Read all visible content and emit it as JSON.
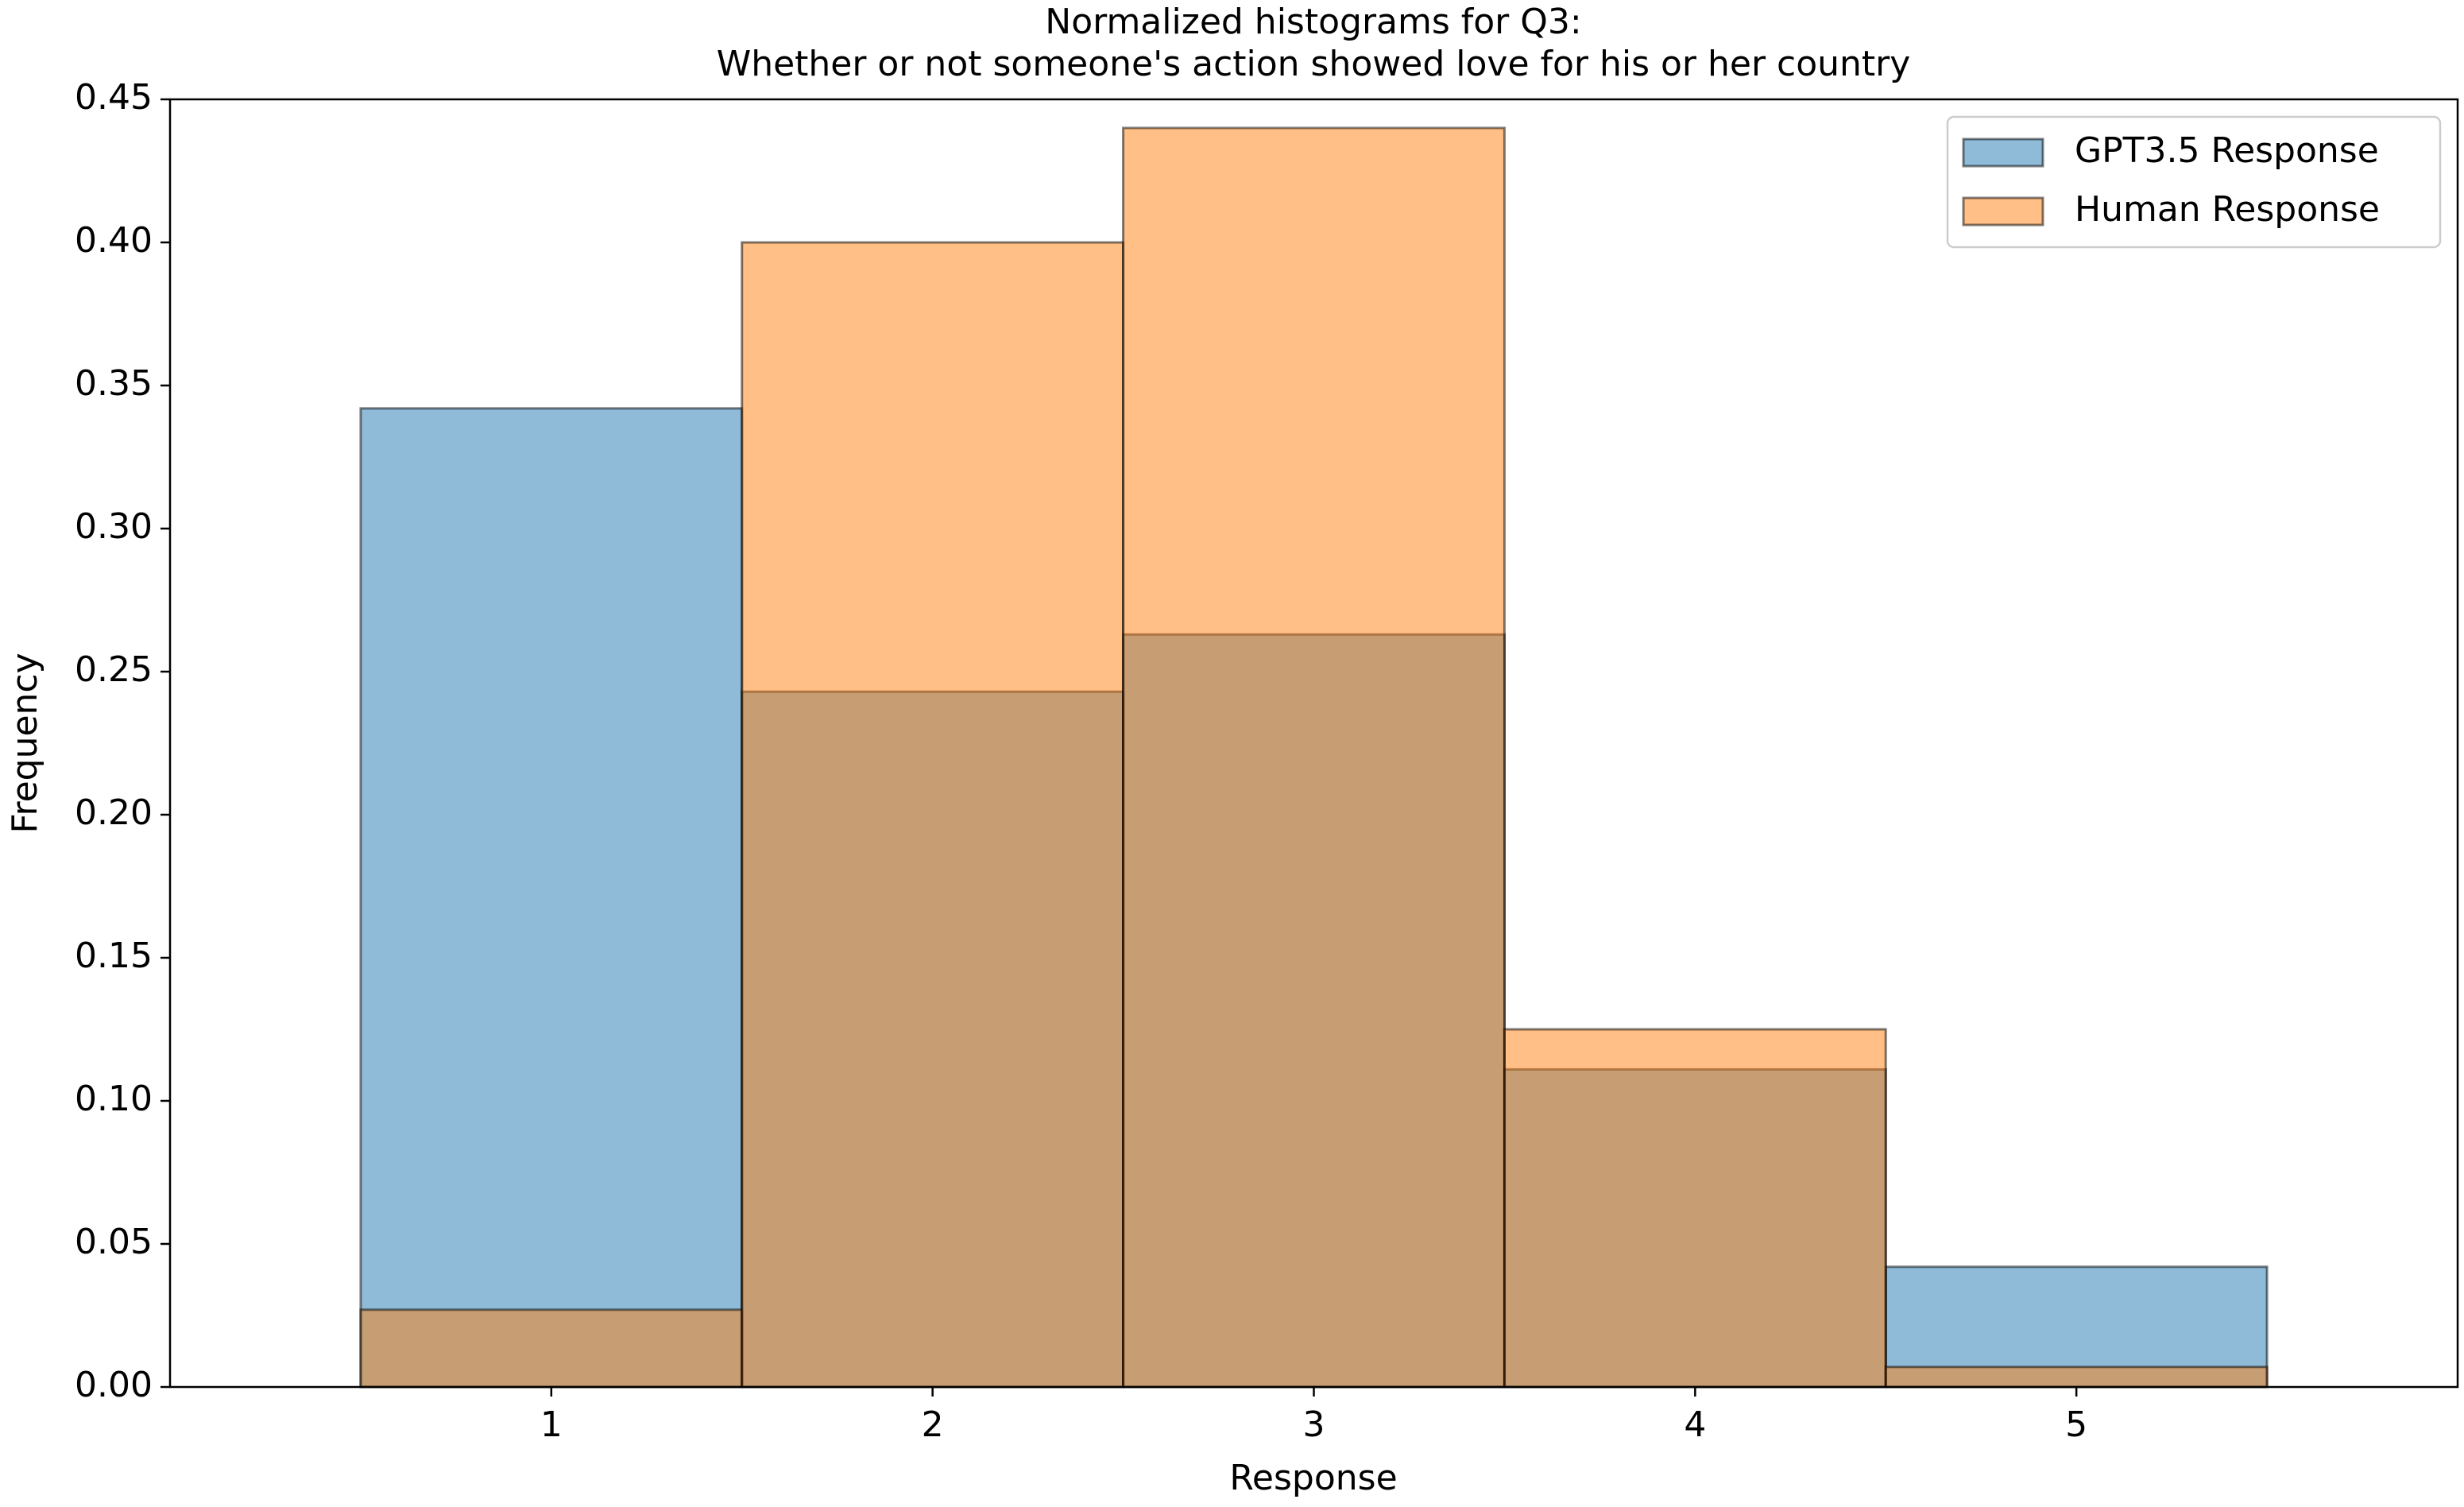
{
  "chart_data": {
    "type": "histogram",
    "title": "Normalized histograms for Q3:",
    "subtitle": "Whether or not someone's action showed love for his or her country",
    "x_label": "Response",
    "y_label": "Frequency",
    "bins": [
      0.5,
      1.5,
      2.5,
      3.5,
      4.5,
      5.5
    ],
    "series": [
      {
        "name": "GPT3.5 Response",
        "color": "#1f77b4",
        "values": [
          0.342,
          0.243,
          0.263,
          0.111,
          0.042
        ]
      },
      {
        "name": "Human Response",
        "color": "#ff7f0e",
        "values": [
          0.027,
          0.4,
          0.44,
          0.125,
          0.007
        ]
      }
    ],
    "xlim": [
      0,
      6
    ],
    "xticks": [
      1,
      2,
      3,
      4,
      5
    ],
    "ylim": [
      0,
      0.45
    ],
    "yticks": [
      {
        "value": 0,
        "label": "0.00"
      },
      {
        "value": 0.05,
        "label": "0.05"
      },
      {
        "value": 0.1,
        "label": "0.10"
      },
      {
        "value": 0.15,
        "label": "0.15"
      },
      {
        "value": 0.2,
        "label": "0.20"
      },
      {
        "value": 0.25,
        "label": "0.25"
      },
      {
        "value": 0.3,
        "label": "0.30"
      },
      {
        "value": 0.35,
        "label": "0.35"
      },
      {
        "value": 0.4,
        "label": "0.40"
      },
      {
        "value": 0.45,
        "label": "0.45"
      }
    ],
    "legend": "upper right",
    "alpha": 0.5
  }
}
